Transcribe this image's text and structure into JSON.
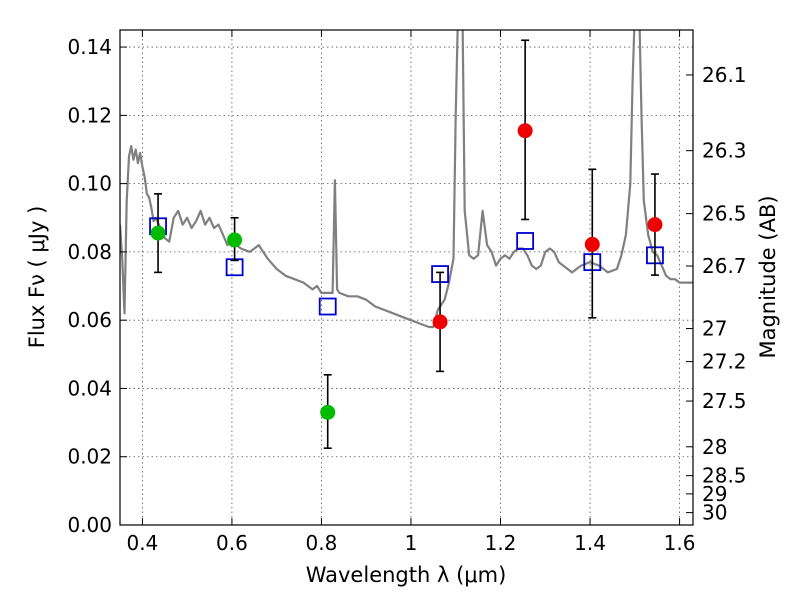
{
  "chart_data": {
    "type": "scatter",
    "xlabel": "Wavelength  λ (μm)",
    "ylabel": "Flux  Fν  ( μJy )",
    "ylabel_right": "Magnitude (AB)",
    "xlim": [
      0.35,
      1.63
    ],
    "ylim": [
      0.0,
      0.145
    ],
    "grid": true,
    "x_ticks": [
      {
        "value": 0.4,
        "label": "0.4"
      },
      {
        "value": 0.6,
        "label": "0.6"
      },
      {
        "value": 0.8,
        "label": "0.8"
      },
      {
        "value": 1.0,
        "label": "1"
      },
      {
        "value": 1.2,
        "label": "1.2"
      },
      {
        "value": 1.4,
        "label": "1.4"
      },
      {
        "value": 1.6,
        "label": "1.6"
      }
    ],
    "y_ticks": [
      {
        "value": 0.0,
        "label": "0.00"
      },
      {
        "value": 0.02,
        "label": "0.02"
      },
      {
        "value": 0.04,
        "label": "0.04"
      },
      {
        "value": 0.06,
        "label": "0.06"
      },
      {
        "value": 0.08,
        "label": "0.08"
      },
      {
        "value": 0.1,
        "label": "0.10"
      },
      {
        "value": 0.12,
        "label": "0.12"
      },
      {
        "value": 0.14,
        "label": "0.14"
      }
    ],
    "right_ticks": [
      {
        "mag": 26.1,
        "label": "26.1"
      },
      {
        "mag": 26.3,
        "label": "26.3"
      },
      {
        "mag": 26.5,
        "label": "26.5"
      },
      {
        "mag": 26.7,
        "label": "26.7"
      },
      {
        "mag": 27.0,
        "label": "27"
      },
      {
        "mag": 27.2,
        "label": "27.2"
      },
      {
        "mag": 27.5,
        "label": "27.5"
      },
      {
        "mag": 28.0,
        "label": "28"
      },
      {
        "mag": 28.5,
        "label": "28.5"
      },
      {
        "mag": 29.0,
        "label": "29"
      },
      {
        "mag": 30.0,
        "label": "30"
      }
    ],
    "colors": {
      "optical_points": "#00bb00",
      "nir_points": "#ee0000",
      "model_squares": "#0000cc",
      "template_line": "#808080",
      "errorbar": "#000000"
    },
    "series": [
      {
        "kind": "points",
        "color_key": "optical_points",
        "points": [
          {
            "x": 0.435,
            "y": 0.0855,
            "yerr_low": 0.0115,
            "yerr_high": 0.0115
          },
          {
            "x": 0.606,
            "y": 0.0835,
            "yerr_low": 0.006,
            "yerr_high": 0.0065
          },
          {
            "x": 0.814,
            "y": 0.033,
            "yerr_low": 0.0105,
            "yerr_high": 0.011
          }
        ]
      },
      {
        "kind": "points",
        "color_key": "nir_points",
        "points": [
          {
            "x": 1.065,
            "y": 0.0595,
            "yerr_low": 0.0145,
            "yerr_high": 0.0145
          },
          {
            "x": 1.255,
            "y": 0.1155,
            "yerr_low": 0.026,
            "yerr_high": 0.0265
          },
          {
            "x": 1.405,
            "y": 0.0822,
            "yerr_low": 0.0215,
            "yerr_high": 0.022
          },
          {
            "x": 1.545,
            "y": 0.088,
            "yerr_low": 0.0148,
            "yerr_high": 0.0148
          }
        ]
      },
      {
        "kind": "squares",
        "color_key": "model_squares",
        "points": [
          {
            "x": 0.435,
            "y": 0.0875
          },
          {
            "x": 0.606,
            "y": 0.0755
          },
          {
            "x": 0.814,
            "y": 0.064
          },
          {
            "x": 1.065,
            "y": 0.0735
          },
          {
            "x": 1.255,
            "y": 0.0832
          },
          {
            "x": 1.405,
            "y": 0.077
          },
          {
            "x": 1.545,
            "y": 0.079
          }
        ]
      },
      {
        "kind": "line",
        "color_key": "template_line",
        "points": [
          [
            0.35,
            0.088
          ],
          [
            0.355,
            0.078
          ],
          [
            0.36,
            0.062
          ],
          [
            0.365,
            0.095
          ],
          [
            0.37,
            0.108
          ],
          [
            0.375,
            0.111
          ],
          [
            0.38,
            0.107
          ],
          [
            0.385,
            0.11
          ],
          [
            0.39,
            0.106
          ],
          [
            0.395,
            0.109
          ],
          [
            0.4,
            0.105
          ],
          [
            0.405,
            0.102
          ],
          [
            0.41,
            0.097
          ],
          [
            0.415,
            0.096
          ],
          [
            0.42,
            0.093
          ],
          [
            0.425,
            0.089
          ],
          [
            0.43,
            0.09
          ],
          [
            0.44,
            0.087
          ],
          [
            0.45,
            0.084
          ],
          [
            0.46,
            0.083
          ],
          [
            0.47,
            0.09
          ],
          [
            0.48,
            0.092
          ],
          [
            0.49,
            0.088
          ],
          [
            0.5,
            0.09
          ],
          [
            0.51,
            0.087
          ],
          [
            0.52,
            0.089
          ],
          [
            0.53,
            0.092
          ],
          [
            0.54,
            0.088
          ],
          [
            0.55,
            0.09
          ],
          [
            0.56,
            0.087
          ],
          [
            0.57,
            0.088
          ],
          [
            0.58,
            0.085
          ],
          [
            0.59,
            0.082
          ],
          [
            0.6,
            0.083
          ],
          [
            0.62,
            0.081
          ],
          [
            0.64,
            0.08
          ],
          [
            0.66,
            0.082
          ],
          [
            0.68,
            0.078
          ],
          [
            0.7,
            0.075
          ],
          [
            0.72,
            0.073
          ],
          [
            0.74,
            0.072
          ],
          [
            0.76,
            0.071
          ],
          [
            0.78,
            0.069
          ],
          [
            0.79,
            0.07
          ],
          [
            0.8,
            0.068
          ],
          [
            0.82,
            0.068
          ],
          [
            0.825,
            0.068
          ],
          [
            0.83,
            0.101
          ],
          [
            0.835,
            0.069
          ],
          [
            0.84,
            0.068
          ],
          [
            0.86,
            0.067
          ],
          [
            0.88,
            0.067
          ],
          [
            0.9,
            0.066
          ],
          [
            0.92,
            0.064
          ],
          [
            0.94,
            0.063
          ],
          [
            0.96,
            0.062
          ],
          [
            0.98,
            0.061
          ],
          [
            1.0,
            0.06
          ],
          [
            1.02,
            0.059
          ],
          [
            1.04,
            0.058
          ],
          [
            1.05,
            0.058
          ],
          [
            1.06,
            0.063
          ],
          [
            1.075,
            0.066
          ],
          [
            1.085,
            0.071
          ],
          [
            1.095,
            0.078
          ],
          [
            1.1,
            0.12
          ],
          [
            1.105,
            0.15
          ],
          [
            1.115,
            0.15
          ],
          [
            1.12,
            0.092
          ],
          [
            1.13,
            0.079
          ],
          [
            1.14,
            0.078
          ],
          [
            1.15,
            0.079
          ],
          [
            1.16,
            0.092
          ],
          [
            1.17,
            0.082
          ],
          [
            1.18,
            0.08
          ],
          [
            1.19,
            0.076
          ],
          [
            1.2,
            0.078
          ],
          [
            1.21,
            0.079
          ],
          [
            1.22,
            0.078
          ],
          [
            1.23,
            0.08
          ],
          [
            1.24,
            0.081
          ],
          [
            1.25,
            0.081
          ],
          [
            1.26,
            0.079
          ],
          [
            1.27,
            0.076
          ],
          [
            1.28,
            0.075
          ],
          [
            1.29,
            0.076
          ],
          [
            1.3,
            0.08
          ],
          [
            1.31,
            0.081
          ],
          [
            1.32,
            0.08
          ],
          [
            1.33,
            0.077
          ],
          [
            1.34,
            0.076
          ],
          [
            1.36,
            0.074
          ],
          [
            1.38,
            0.076
          ],
          [
            1.4,
            0.077
          ],
          [
            1.42,
            0.076
          ],
          [
            1.44,
            0.074
          ],
          [
            1.46,
            0.075
          ],
          [
            1.47,
            0.079
          ],
          [
            1.48,
            0.085
          ],
          [
            1.49,
            0.1
          ],
          [
            1.495,
            0.13
          ],
          [
            1.5,
            0.15
          ],
          [
            1.51,
            0.15
          ],
          [
            1.515,
            0.12
          ],
          [
            1.52,
            0.095
          ],
          [
            1.53,
            0.085
          ],
          [
            1.54,
            0.08
          ],
          [
            1.55,
            0.079
          ],
          [
            1.56,
            0.076
          ],
          [
            1.57,
            0.073
          ],
          [
            1.58,
            0.072
          ],
          [
            1.59,
            0.072
          ],
          [
            1.6,
            0.071
          ],
          [
            1.61,
            0.071
          ],
          [
            1.63,
            0.071
          ]
        ]
      }
    ]
  }
}
